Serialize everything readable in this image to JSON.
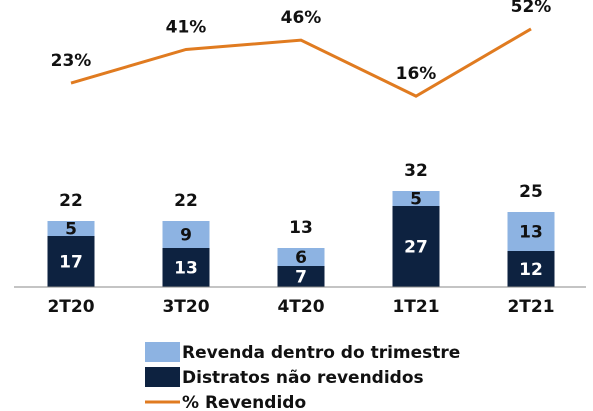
{
  "chart_data": {
    "type": "bar",
    "stacked": true,
    "categories": [
      "2T20",
      "3T20",
      "4T20",
      "1T21",
      "2T21"
    ],
    "series": [
      {
        "name": "Revenda dentro do trimestre",
        "color": "#8db3e2",
        "values": [
          5,
          9,
          6,
          5,
          13
        ]
      },
      {
        "name": "Distratos não revendidos",
        "color": "#0d2240",
        "values": [
          17,
          13,
          7,
          27,
          12
        ]
      },
      {
        "name": "% Revendido",
        "type": "line",
        "axis": "y2",
        "color": "#e07b20",
        "values": [
          23,
          41,
          46,
          16,
          52
        ],
        "value_labels": [
          "23%",
          "41%",
          "46%",
          "16%",
          "52%"
        ]
      }
    ],
    "totals": [
      22,
      22,
      13,
      32,
      25
    ],
    "ylim": [
      0,
      60
    ],
    "y2lim": [
      0,
      60
    ],
    "legend": "bottom"
  }
}
